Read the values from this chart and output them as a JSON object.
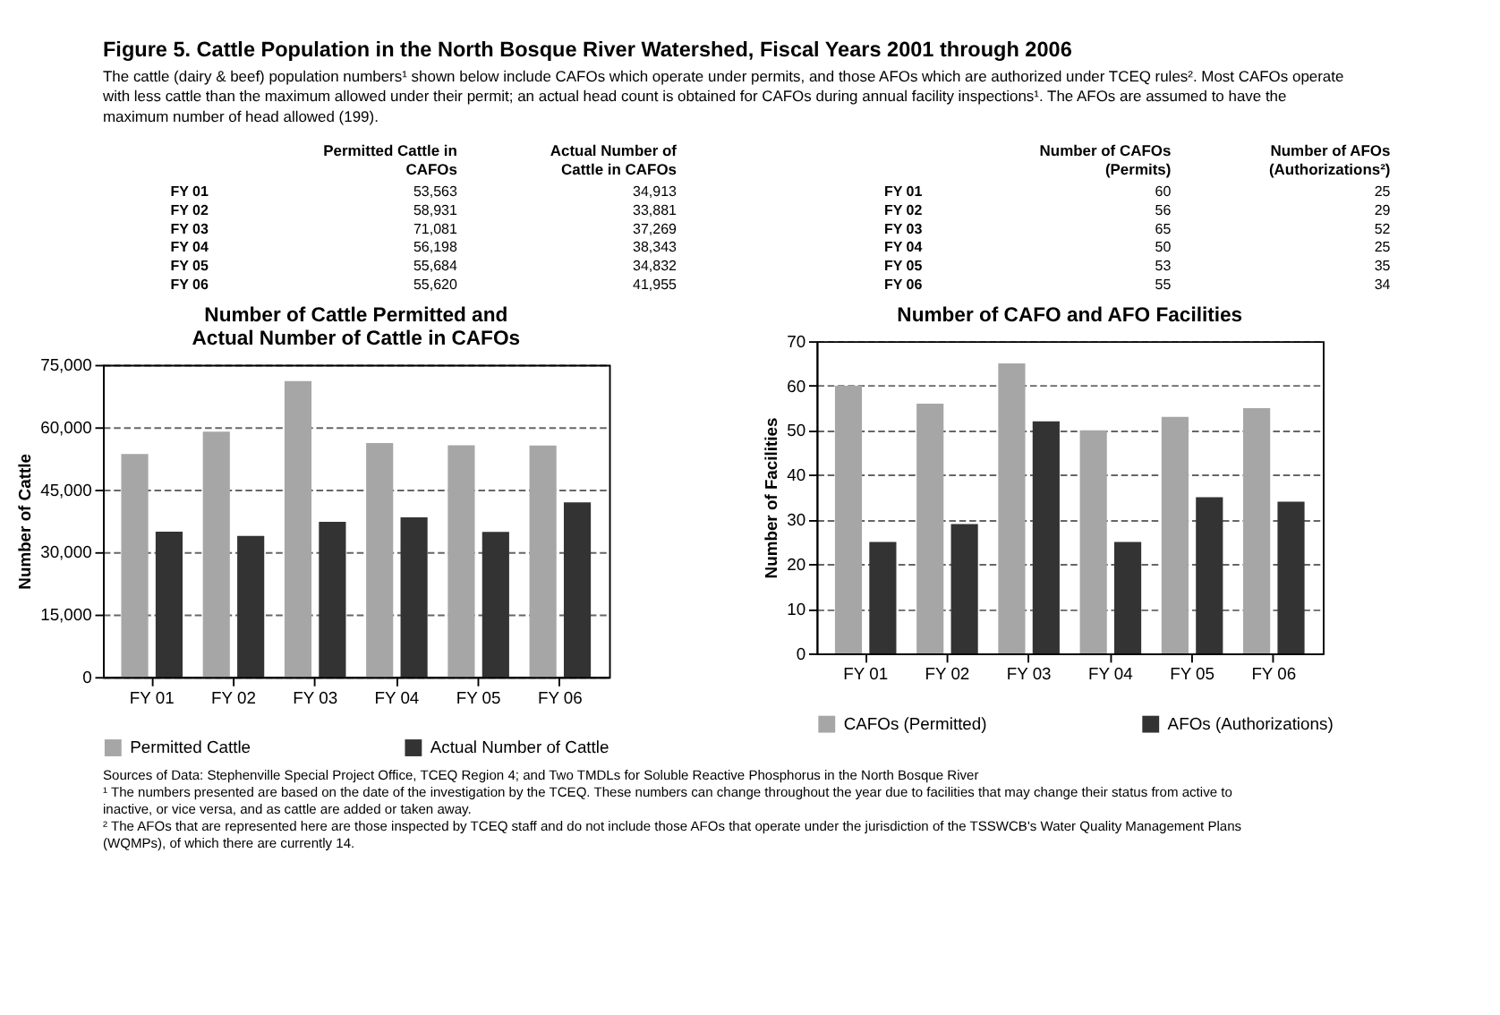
{
  "chart_data": [
    {
      "type": "other",
      "title": "Figure 5. Cattle Population in the North Bosque River Watershed, Fiscal Years 2001 through 2006",
      "subtitle": "The cattle (dairy & beef) population numbers¹ shown below include CAFOs which operate under permits, and those AFOs which are authorized under TCEQ rules². Most CAFOs operate with less cattle than the maximum allowed under their permit; an actual head count is obtained for CAFOs during annual facility inspections¹. The AFOs are assumed to have the maximum number of head allowed (199)."
    },
    {
      "type": "other",
      "categories": [
        "FY 01",
        "FY 02",
        "FY 03",
        "FY 04",
        "FY 05",
        "FY 06"
      ],
      "series": [
        {
          "name": "Permitted Cattle in CAFOs",
          "values": [
            53563,
            58931,
            71081,
            56198,
            55684,
            55620
          ],
          "value_labels": [
            "53,563",
            "58,931",
            "71,081",
            "56,198",
            "55,684",
            "55,620"
          ]
        },
        {
          "name": "Actual Number of Cattle in CAFOs",
          "values": [
            34913,
            33881,
            37269,
            38343,
            34832,
            41955
          ],
          "value_labels": [
            "34,913",
            "33,881",
            "37,269",
            "38,343",
            "34,832",
            "41,955"
          ]
        }
      ]
    },
    {
      "type": "bar",
      "title": "Number of Cattle Permitted and Actual Number of Cattle in CAFOs",
      "ylabel": "Number of Cattle",
      "categories": [
        "FY 01",
        "FY 02",
        "FY 03",
        "FY 04",
        "FY 05",
        "FY 06"
      ],
      "series": [
        {
          "name": "Permitted Cattle",
          "color": "#a6a6a6",
          "values": [
            53563,
            58931,
            71081,
            56198,
            55684,
            55620
          ]
        },
        {
          "name": "Actual Number of Cattle",
          "color": "#333333",
          "values": [
            34913,
            33881,
            37269,
            38343,
            34832,
            41955
          ]
        }
      ],
      "ylim": [
        0,
        75000
      ],
      "yticks": [
        0,
        {
          "value": 15000,
          "label": "15,000"
        },
        {
          "value": 30000,
          "label": "30,000"
        },
        {
          "value": 45000,
          "label": "45,000"
        },
        {
          "value": 60000,
          "label": "60,000"
        },
        {
          "value": 75000,
          "label": "75,000"
        }
      ],
      "grid": "y",
      "legend": "bottom"
    },
    {
      "type": "other",
      "categories": [
        "FY 01",
        "FY 02",
        "FY 03",
        "FY 04",
        "FY 05",
        "FY 06"
      ],
      "series": [
        {
          "name": "Number of CAFOs (Permits)",
          "values": [
            60,
            56,
            65,
            50,
            53,
            55
          ]
        },
        {
          "name": "Number of AFOs (Authorizations²)",
          "values": [
            25,
            29,
            52,
            25,
            35,
            34
          ]
        }
      ],
      "data_labels": true
    },
    {
      "type": "bar",
      "title": "Number of CAFO and AFO Facilities",
      "ylabel": "Number of Facilities",
      "categories": [
        "FY 01",
        "FY 02",
        "FY 03",
        "FY 04",
        "FY 05",
        "FY 06"
      ],
      "series": [
        {
          "name": "CAFOs (Permitted)",
          "color": "#a6a6a6",
          "values": [
            60,
            56,
            65,
            50,
            53,
            55
          ]
        },
        {
          "name": "AFOs (Authorizations)",
          "color": "#333333",
          "values": [
            25,
            29,
            52,
            25,
            35,
            34
          ]
        }
      ],
      "ylim": [
        0,
        70
      ],
      "yticks": [
        0,
        10,
        20,
        30,
        40,
        50,
        60,
        70
      ],
      "grid": "y",
      "legend": "bottom"
    },
    {
      "type": "other",
      "annotations": [
        "Sources of Data: Stephenville Special Project Office, TCEQ Region 4; and Two TMDLs for Soluble Reactive Phosphorus in the North Bosque River",
        "¹ The numbers presented are based on the date of the investigation by the TCEQ. These numbers can change throughout the year due to facilities that may change their status from active to inactive, or vice versa, and as cattle are added or taken away.",
        "² The AFOs that are represented here are those inspected by TCEQ staff and do not include those AFOs that operate under the jurisdiction of the TSSWCB's Water Quality Management Plans (WQMPs), of which there are currently 14."
      ]
    }
  ]
}
